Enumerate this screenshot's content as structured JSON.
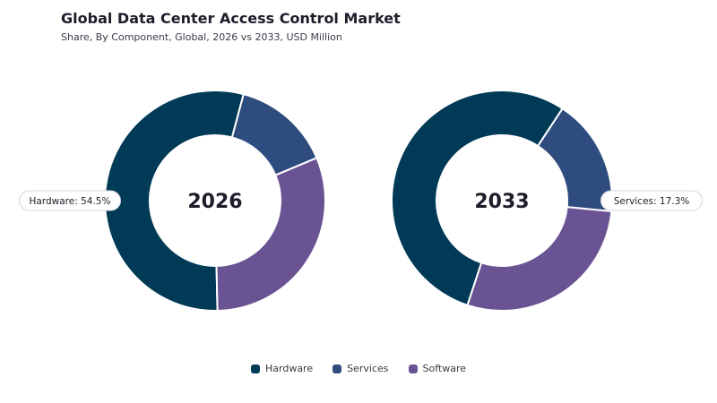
{
  "header": {
    "title": "Global Data Center Access Control Market",
    "subtitle": "Share, By Component, Global, 2026 vs 2033, USD Million"
  },
  "colors": {
    "Hardware": "#003a57",
    "Services": "#2e4c7e",
    "Software": "#6a5393"
  },
  "chart_data": [
    {
      "type": "pie",
      "center_label": "2026",
      "categories": [
        "Hardware",
        "Services",
        "Software"
      ],
      "values": [
        54.5,
        14.5,
        31.0
      ],
      "callout": {
        "category": "Hardware",
        "text": "Hardware: 54.5%"
      }
    },
    {
      "type": "pie",
      "center_label": "2033",
      "categories": [
        "Hardware",
        "Services",
        "Software"
      ],
      "values": [
        54.2,
        17.3,
        28.5
      ],
      "callout": {
        "category": "Services",
        "text": "Services: 17.3%"
      }
    }
  ],
  "legend": {
    "items": [
      {
        "label": "Hardware",
        "color": "#003a57"
      },
      {
        "label": "Services",
        "color": "#2e4c7e"
      },
      {
        "label": "Software",
        "color": "#6a5393"
      }
    ]
  }
}
